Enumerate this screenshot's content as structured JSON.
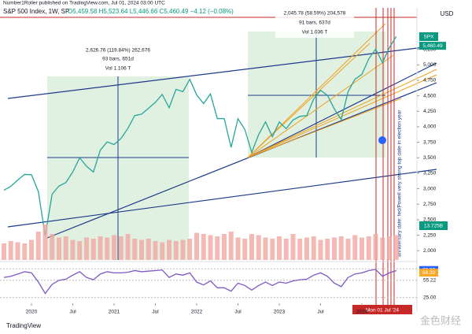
{
  "chart_data": {
    "type": "line",
    "publisher": "Number1Roller published on TradingView.com, Jul 01, 2024 03:00 UTC",
    "title": "S&P 500 Index, 1W, SP",
    "ohlc": "O5,459.58 H5,523.64 L5,446.66 C5,460.49 −4.12 (−0.08%)",
    "currency": "USD",
    "symbol": "SPX",
    "last_price": {
      "value": 5460.49,
      "label": "5,460.49"
    },
    "volume_label": "13.725B",
    "brand": "TradingView",
    "watermark": "金色财经",
    "date_marker": "Mon 01 Jul '24",
    "annotation": "anniversary date: fed/Powell very strong top date in election year",
    "measure_1": [
      "2,626.76 (119.84%) 262,676",
      "93 bars, 651d",
      "Vol 1.106 T"
    ],
    "measure_2": [
      "2,045.78 (58.59%) 204,578",
      "91 bars, 637d",
      "Vol 1.036 T"
    ],
    "x": [
      "2019-09",
      "2019-10",
      "2019-11",
      "2019-12",
      "2020-01",
      "2020-02",
      "2020-03",
      "2020-04",
      "2020-05",
      "2020-06",
      "2020-07",
      "2020-08",
      "2020-09",
      "2020-10",
      "2020-11",
      "2020-12",
      "2021-01",
      "2021-02",
      "2021-03",
      "2021-04",
      "2021-05",
      "2021-06",
      "2021-07",
      "2021-08",
      "2021-09",
      "2021-10",
      "2021-11",
      "2021-12",
      "2022-01",
      "2022-02",
      "2022-03",
      "2022-04",
      "2022-05",
      "2022-06",
      "2022-07",
      "2022-08",
      "2022-09",
      "2022-10",
      "2022-11",
      "2022-12",
      "2023-01",
      "2023-02",
      "2023-03",
      "2023-04",
      "2023-05",
      "2023-06",
      "2023-07",
      "2023-08",
      "2023-09",
      "2023-10",
      "2023-11",
      "2023-12",
      "2024-01",
      "2024-02",
      "2024-03",
      "2024-04",
      "2024-05",
      "2024-06"
    ],
    "series": [
      {
        "name": "SPX",
        "color": "#26a69a",
        "values": [
          2977,
          3038,
          3141,
          3231,
          3226,
          2954,
          2237,
          2912,
          3044,
          3100,
          3271,
          3500,
          3363,
          3270,
          3622,
          3756,
          3714,
          3811,
          3973,
          4181,
          4204,
          4298,
          4395,
          4523,
          4308,
          4605,
          4567,
          4766,
          4516,
          4374,
          4530,
          4132,
          4132,
          3667,
          4130,
          3955,
          3586,
          3872,
          4080,
          3840,
          4077,
          3970,
          4109,
          4169,
          4180,
          4450,
          4589,
          4508,
          4288,
          4117,
          4568,
          4770,
          4846,
          5096,
          5254,
          5036,
          5278,
          5460
        ]
      },
      {
        "name": "Volume",
        "color": "#f2a7a3",
        "axis": "y2",
        "values": [
          14,
          16,
          15,
          14,
          17,
          24,
          30,
          22,
          19,
          20,
          17,
          16,
          19,
          18,
          20,
          19,
          21,
          20,
          22,
          18,
          17,
          18,
          16,
          15,
          17,
          16,
          17,
          18,
          23,
          22,
          21,
          20,
          22,
          24,
          19,
          18,
          22,
          21,
          19,
          18,
          20,
          18,
          22,
          18,
          19,
          20,
          17,
          18,
          19,
          20,
          18,
          21,
          19,
          20,
          22,
          19,
          20,
          21
        ]
      },
      {
        "name": "RSI",
        "color": "#7e57c2",
        "axis": "rsi",
        "values": [
          60,
          62,
          66,
          70,
          68,
          52,
          32,
          48,
          55,
          57,
          64,
          70,
          60,
          56,
          66,
          70,
          68,
          68,
          69,
          72,
          70,
          71,
          72,
          73,
          60,
          66,
          64,
          68,
          52,
          47,
          54,
          42,
          42,
          36,
          50,
          46,
          38,
          46,
          52,
          46,
          52,
          50,
          54,
          56,
          57,
          64,
          68,
          62,
          50,
          44,
          60,
          66,
          68,
          72,
          74,
          62,
          68,
          72
        ]
      }
    ],
    "ylim": [
      1850,
      5920
    ],
    "yticks": [
      {
        "value": 2000,
        "label": "2,000"
      },
      {
        "value": 2250,
        "label": "2,250"
      },
      {
        "value": 2500,
        "label": "2,500"
      },
      {
        "value": 2750,
        "label": "2,750"
      },
      {
        "value": 3000,
        "label": "3,000"
      },
      {
        "value": 3250,
        "label": "3,250"
      },
      {
        "value": 3500,
        "label": "3,500"
      },
      {
        "value": 3750,
        "label": "3,750"
      },
      {
        "value": 4000,
        "label": "4,000"
      },
      {
        "value": 4250,
        "label": "4,250"
      },
      {
        "value": 4500,
        "label": "4,500"
      },
      {
        "value": 4750,
        "label": "4,750"
      },
      {
        "value": 5000,
        "label": "5,000"
      },
      {
        "value": 5250,
        "label": "5,250"
      }
    ],
    "y2lim": [
      0,
      60
    ],
    "rsilim": [
      15,
      85
    ],
    "rsiticks": [
      {
        "value": 75,
        "label": "75.00"
      },
      {
        "value": 55.22,
        "label": "55.22"
      },
      {
        "value": 25,
        "label": "25.00"
      }
    ],
    "rsi_values": [
      {
        "value": 72.99,
        "label": "72.99"
      },
      {
        "value": 68.39,
        "label": "68.39"
      }
    ],
    "xlim": [
      "2019-09",
      "2024-09"
    ],
    "xticks": [
      {
        "value": "2020-01",
        "label": "2020"
      },
      {
        "value": "2020-07",
        "label": "Jul"
      },
      {
        "value": "2021-01",
        "label": "2021"
      },
      {
        "value": "2021-07",
        "label": "Jul"
      },
      {
        "value": "2022-01",
        "label": "2022"
      },
      {
        "value": "2022-07",
        "label": "Jul"
      },
      {
        "value": "2023-01",
        "label": "2023"
      },
      {
        "value": "2023-07",
        "label": "Jul"
      },
      {
        "value": "2024-01",
        "label": "2024"
      }
    ]
  }
}
